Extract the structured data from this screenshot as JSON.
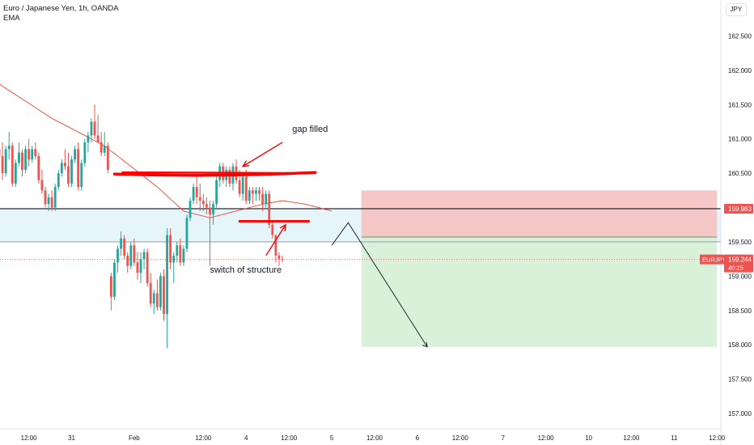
{
  "header": {
    "title": "Euro / Japanese Yen, 1h, OANDA",
    "indicator": "EMA",
    "currency": "JPY"
  },
  "colors": {
    "up": "#26a69a",
    "down": "#ef5350",
    "ema": "#f44336",
    "annotation": "#ff0000",
    "level_line": "#131722",
    "zone_fill": "#e6f5fa",
    "risk_fill": "#f6c7c7",
    "reward_fill": "#d9f0d9"
  },
  "chart_data": {
    "type": "candlestick",
    "symbol": "EURJPY",
    "ylim": [
      156.8,
      163.0
    ],
    "yticks": [
      {
        "v": 162.5,
        "label": "162.500"
      },
      {
        "v": 162.0,
        "label": "162.000"
      },
      {
        "v": 161.5,
        "label": "161.500"
      },
      {
        "v": 161.0,
        "label": "161.000"
      },
      {
        "v": 160.5,
        "label": "160.500"
      },
      {
        "v": 159.5,
        "label": "159.500"
      },
      {
        "v": 159.0,
        "label": "159.000"
      },
      {
        "v": 158.5,
        "label": "158.500"
      },
      {
        "v": 158.0,
        "label": "158.000"
      },
      {
        "v": 157.5,
        "label": "157.500"
      },
      {
        "v": 157.0,
        "label": "157.000"
      }
    ],
    "xticks": [
      {
        "i": 9,
        "label": "12:00"
      },
      {
        "i": 22,
        "label": "31"
      },
      {
        "i": 41,
        "label": "Feb"
      },
      {
        "i": 62,
        "label": "12:00"
      },
      {
        "i": 75,
        "label": "4"
      },
      {
        "i": 88,
        "label": "12:00"
      },
      {
        "i": 101,
        "label": "5"
      },
      {
        "i": 114,
        "label": "12:00"
      },
      {
        "i": 127,
        "label": "6"
      },
      {
        "i": 140,
        "label": "12:00"
      },
      {
        "i": 153,
        "label": "7"
      },
      {
        "i": 166,
        "label": "12:00"
      },
      {
        "i": 179,
        "label": "10"
      },
      {
        "i": 192,
        "label": "12:00"
      },
      {
        "i": 205,
        "label": "11"
      },
      {
        "i": 218,
        "label": "12:00"
      }
    ],
    "candles": [
      [
        160.85,
        161.05,
        160.65,
        160.75
      ],
      [
        160.75,
        160.95,
        160.4,
        160.5
      ],
      [
        160.5,
        160.9,
        160.45,
        160.85
      ],
      [
        160.85,
        161.1,
        160.7,
        160.9
      ],
      [
        160.9,
        160.95,
        160.3,
        160.35
      ],
      [
        160.35,
        160.7,
        160.3,
        160.65
      ],
      [
        160.65,
        160.95,
        160.6,
        160.8
      ],
      [
        160.8,
        160.85,
        160.45,
        160.55
      ],
      [
        160.55,
        160.9,
        160.5,
        160.85
      ],
      [
        160.85,
        161.0,
        160.6,
        160.7
      ],
      [
        160.7,
        160.9,
        160.65,
        160.85
      ],
      [
        160.85,
        160.95,
        160.7,
        160.75
      ],
      [
        160.75,
        160.8,
        160.35,
        160.4
      ],
      [
        160.4,
        160.55,
        160.2,
        160.25
      ],
      [
        160.25,
        160.3,
        160.0,
        160.05
      ],
      [
        160.05,
        160.2,
        159.95,
        160.15
      ],
      [
        160.15,
        160.25,
        159.95,
        160.0
      ],
      [
        160.0,
        160.35,
        159.95,
        160.3
      ],
      [
        160.3,
        160.55,
        160.25,
        160.5
      ],
      [
        160.5,
        160.7,
        160.45,
        160.65
      ],
      [
        160.65,
        160.85,
        160.55,
        160.6
      ],
      [
        160.6,
        160.8,
        160.3,
        160.35
      ],
      [
        160.35,
        160.75,
        160.3,
        160.7
      ],
      [
        160.7,
        160.9,
        160.65,
        160.85
      ],
      [
        160.85,
        160.95,
        160.25,
        160.3
      ],
      [
        160.3,
        160.7,
        160.25,
        160.65
      ],
      [
        160.65,
        161.0,
        160.6,
        160.95
      ],
      [
        160.95,
        161.1,
        160.8,
        161.05
      ],
      [
        161.05,
        161.3,
        160.95,
        161.25
      ],
      [
        161.25,
        161.5,
        161.0,
        161.05
      ],
      [
        161.05,
        161.35,
        160.95,
        160.95
      ],
      [
        160.95,
        161.1,
        160.75,
        160.8
      ],
      [
        160.8,
        161.1,
        160.75,
        160.9
      ],
      [
        160.9,
        160.95,
        160.5,
        160.55
      ],
      [
        159.0,
        159.05,
        158.5,
        158.7
      ],
      [
        158.7,
        159.25,
        158.65,
        159.2
      ],
      [
        159.2,
        159.45,
        159.05,
        159.4
      ],
      [
        159.4,
        159.65,
        159.3,
        159.55
      ],
      [
        159.55,
        159.6,
        159.25,
        159.3
      ],
      [
        159.3,
        159.35,
        159.05,
        159.15
      ],
      [
        159.15,
        159.5,
        159.1,
        159.45
      ],
      [
        159.45,
        159.55,
        159.15,
        159.2
      ],
      [
        159.2,
        159.35,
        158.95,
        159.05
      ],
      [
        159.05,
        159.35,
        158.9,
        159.25
      ],
      [
        159.25,
        159.4,
        159.1,
        159.35
      ],
      [
        159.35,
        159.4,
        158.85,
        158.9
      ],
      [
        158.9,
        159.05,
        158.55,
        158.6
      ],
      [
        158.6,
        158.8,
        158.45,
        158.75
      ],
      [
        158.75,
        158.95,
        158.5,
        158.55
      ],
      [
        158.55,
        159.05,
        158.5,
        159.0
      ],
      [
        159.0,
        159.1,
        158.35,
        158.45
      ],
      [
        158.45,
        159.7,
        157.95,
        159.6
      ],
      [
        159.6,
        159.7,
        159.1,
        159.2
      ],
      [
        159.2,
        159.35,
        158.9,
        159.3
      ],
      [
        159.3,
        159.5,
        159.2,
        159.45
      ],
      [
        159.45,
        159.55,
        159.15,
        159.2
      ],
      [
        159.2,
        159.45,
        159.15,
        159.4
      ],
      [
        159.4,
        159.9,
        159.35,
        159.85
      ],
      [
        159.85,
        160.15,
        159.8,
        160.1
      ],
      [
        160.1,
        160.35,
        160.05,
        160.3
      ],
      [
        160.3,
        160.5,
        160.05,
        160.15
      ],
      [
        160.15,
        160.35,
        159.95,
        160.1
      ],
      [
        160.1,
        160.2,
        159.95,
        160.05
      ],
      [
        160.05,
        160.15,
        159.9,
        160.0
      ],
      [
        160.0,
        160.1,
        159.15,
        159.9
      ],
      [
        159.9,
        160.1,
        159.75,
        160.05
      ],
      [
        160.05,
        160.45,
        160.0,
        160.4
      ],
      [
        160.4,
        160.65,
        160.3,
        160.6
      ],
      [
        160.6,
        160.65,
        160.35,
        160.4
      ],
      [
        160.4,
        160.6,
        160.3,
        160.55
      ],
      [
        160.55,
        160.6,
        160.3,
        160.35
      ],
      [
        160.35,
        160.65,
        160.25,
        160.6
      ],
      [
        160.6,
        160.7,
        160.35,
        160.4
      ],
      [
        160.4,
        160.55,
        160.15,
        160.2
      ],
      [
        160.2,
        160.5,
        160.1,
        160.45
      ],
      [
        160.45,
        160.55,
        160.05,
        160.1
      ],
      [
        160.1,
        160.3,
        160.05,
        160.25
      ],
      [
        160.25,
        160.3,
        160.05,
        160.2
      ],
      [
        160.2,
        160.3,
        160.1,
        160.25
      ],
      [
        160.25,
        160.3,
        160.1,
        160.2
      ],
      [
        160.2,
        160.3,
        159.95,
        160.05
      ],
      [
        160.05,
        160.25,
        160.0,
        160.2
      ],
      [
        160.2,
        160.25,
        159.7,
        159.75
      ],
      [
        159.75,
        159.8,
        159.55,
        159.6
      ],
      [
        159.6,
        159.6,
        159.2,
        159.3
      ],
      [
        159.3,
        159.35,
        159.15,
        159.25
      ],
      [
        159.25,
        159.3,
        159.2,
        159.24
      ]
    ],
    "ema": [
      [
        0,
        161.8
      ],
      [
        8,
        161.55
      ],
      [
        16,
        161.3
      ],
      [
        24,
        161.1
      ],
      [
        32,
        160.9
      ],
      [
        40,
        160.6
      ],
      [
        48,
        160.3
      ],
      [
        56,
        159.95
      ],
      [
        64,
        159.85
      ],
      [
        72,
        159.95
      ],
      [
        80,
        160.05
      ],
      [
        86,
        160.1
      ],
      [
        93,
        160.05
      ],
      [
        101,
        159.95
      ]
    ],
    "levels": {
      "resistance": 159.983,
      "support": 159.5,
      "current": 159.244,
      "current_label": "EURJPY",
      "countdown": "40:25",
      "resistance_label": "159.983"
    },
    "position": {
      "start_i": 110,
      "end_i": 218,
      "stop": 160.25,
      "entry": 159.57,
      "target": 157.97
    },
    "projection": [
      [
        101,
        159.45
      ],
      [
        106,
        159.78
      ],
      [
        130,
        157.97
      ]
    ],
    "annotations": [
      {
        "text": "gap filled",
        "i": 89,
        "y": 161.13
      },
      {
        "text": "switch of structure",
        "i": 64,
        "y": 159.07
      }
    ],
    "marks": {
      "gap_line": {
        "i1": 35,
        "i2": 96,
        "y": 160.5
      },
      "structure_line": {
        "i1": 73,
        "i2": 94,
        "y": 159.8
      },
      "arrow_gap": {
        "from": [
          86,
          160.95
        ],
        "to": [
          74,
          160.6
        ]
      },
      "arrow_switch": {
        "from": [
          81,
          159.3
        ],
        "to": [
          87,
          159.75
        ]
      }
    }
  }
}
